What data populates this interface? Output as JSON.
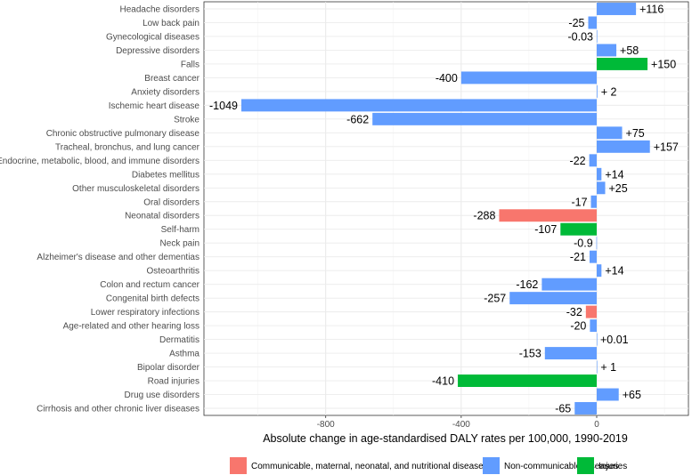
{
  "chart_data": {
    "type": "bar",
    "orientation": "horizontal",
    "xlabel": "Absolute change in age-standardised DALY rates per 100,000, 1990-2019",
    "xlim": [
      -1200,
      250
    ],
    "xticks": [
      -800,
      -400,
      0
    ],
    "xtick_labels": [
      "-800",
      "-400",
      "0"
    ],
    "legend_position": "bottom",
    "groups": [
      {
        "key": "cmnn",
        "name": "Communicable, maternal, neonatal, and nutritional diseases",
        "color": "#F8766D"
      },
      {
        "key": "ncd",
        "name": "Non-communicable diseases",
        "color": "#619CFF"
      },
      {
        "key": "inj",
        "name": "Injuries",
        "color": "#00BA38"
      }
    ],
    "categories": [
      "Headache disorders",
      "Low back pain",
      "Gynecological diseases",
      "Depressive disorders",
      "Falls",
      "Breast cancer",
      "Anxiety disorders",
      "Ischemic heart disease",
      "Stroke",
      "Chronic obstructive pulmonary disease",
      "Tracheal, bronchus, and lung cancer",
      "Endocrine, metabolic, blood, and immune disorders",
      "Diabetes mellitus",
      "Other musculoskeletal disorders",
      "Oral disorders",
      "Neonatal disorders",
      "Self-harm",
      "Neck pain",
      "Alzheimer's disease and other dementias",
      "Osteoarthritis",
      "Colon and rectum cancer",
      "Congenital birth defects",
      "Lower respiratory infections",
      "Age-related and other hearing loss",
      "Dermatitis",
      "Asthma",
      "Bipolar disorder",
      "Road injuries",
      "Drug use disorders",
      "Cirrhosis and other chronic liver diseases"
    ],
    "values": [
      116,
      -25,
      -0.03,
      58,
      150,
      -400,
      2,
      -1049,
      -662,
      75,
      157,
      -22,
      14,
      25,
      -17,
      -288,
      -107,
      -0.9,
      -21,
      14,
      -162,
      -257,
      -32,
      -20,
      0.01,
      -153,
      1,
      -410,
      65,
      -65
    ],
    "value_labels": [
      "+116",
      "-25",
      "-0.03",
      "+58",
      "+150",
      "-400",
      "+ 2",
      "-1049",
      "-662",
      "+75",
      "+157",
      "-22",
      "+14",
      "+25",
      "-17",
      "-288",
      "-107",
      "-0.9",
      "-21",
      "+14",
      "-162",
      "-257",
      "-32",
      "-20",
      "+0.01",
      "-153",
      "+ 1",
      "-410",
      "+65",
      "-65"
    ],
    "groups_per_bar": [
      "ncd",
      "ncd",
      "ncd",
      "ncd",
      "inj",
      "ncd",
      "ncd",
      "ncd",
      "ncd",
      "ncd",
      "ncd",
      "ncd",
      "ncd",
      "ncd",
      "ncd",
      "cmnn",
      "inj",
      "ncd",
      "ncd",
      "ncd",
      "ncd",
      "ncd",
      "cmnn",
      "ncd",
      "ncd",
      "ncd",
      "ncd",
      "inj",
      "ncd",
      "ncd"
    ]
  }
}
